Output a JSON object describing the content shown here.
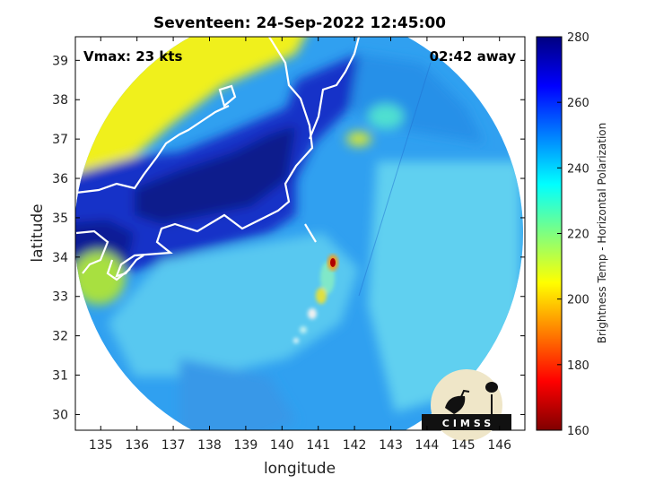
{
  "chart_data": {
    "type": "heatmap",
    "title": "Seventeen: 24-Sep-2022 12:45:00",
    "xlabel": "longitude",
    "ylabel": "latitude",
    "xlim": [
      134.3,
      146.7
    ],
    "ylim": [
      29.6,
      39.6
    ],
    "xticks": [
      135,
      136,
      137,
      138,
      139,
      140,
      141,
      142,
      143,
      144,
      145,
      146
    ],
    "yticks": [
      30,
      31,
      32,
      33,
      34,
      35,
      36,
      37,
      38,
      39
    ],
    "colorbar": {
      "label": "Brightness Temp - Horizontal Polarization",
      "range": [
        160,
        280
      ],
      "ticks": [
        160,
        180,
        200,
        220,
        240,
        260,
        280
      ],
      "colormap": "jet"
    },
    "annotations": {
      "vmax": "Vmax: 23 kts",
      "away": "02:42 away"
    },
    "storm_center": {
      "lon": 141.3,
      "lat": 33.9
    },
    "swath_center": {
      "lon": 140.3,
      "lat": 34.6
    }
  },
  "logo": {
    "text": "CIMSS"
  }
}
